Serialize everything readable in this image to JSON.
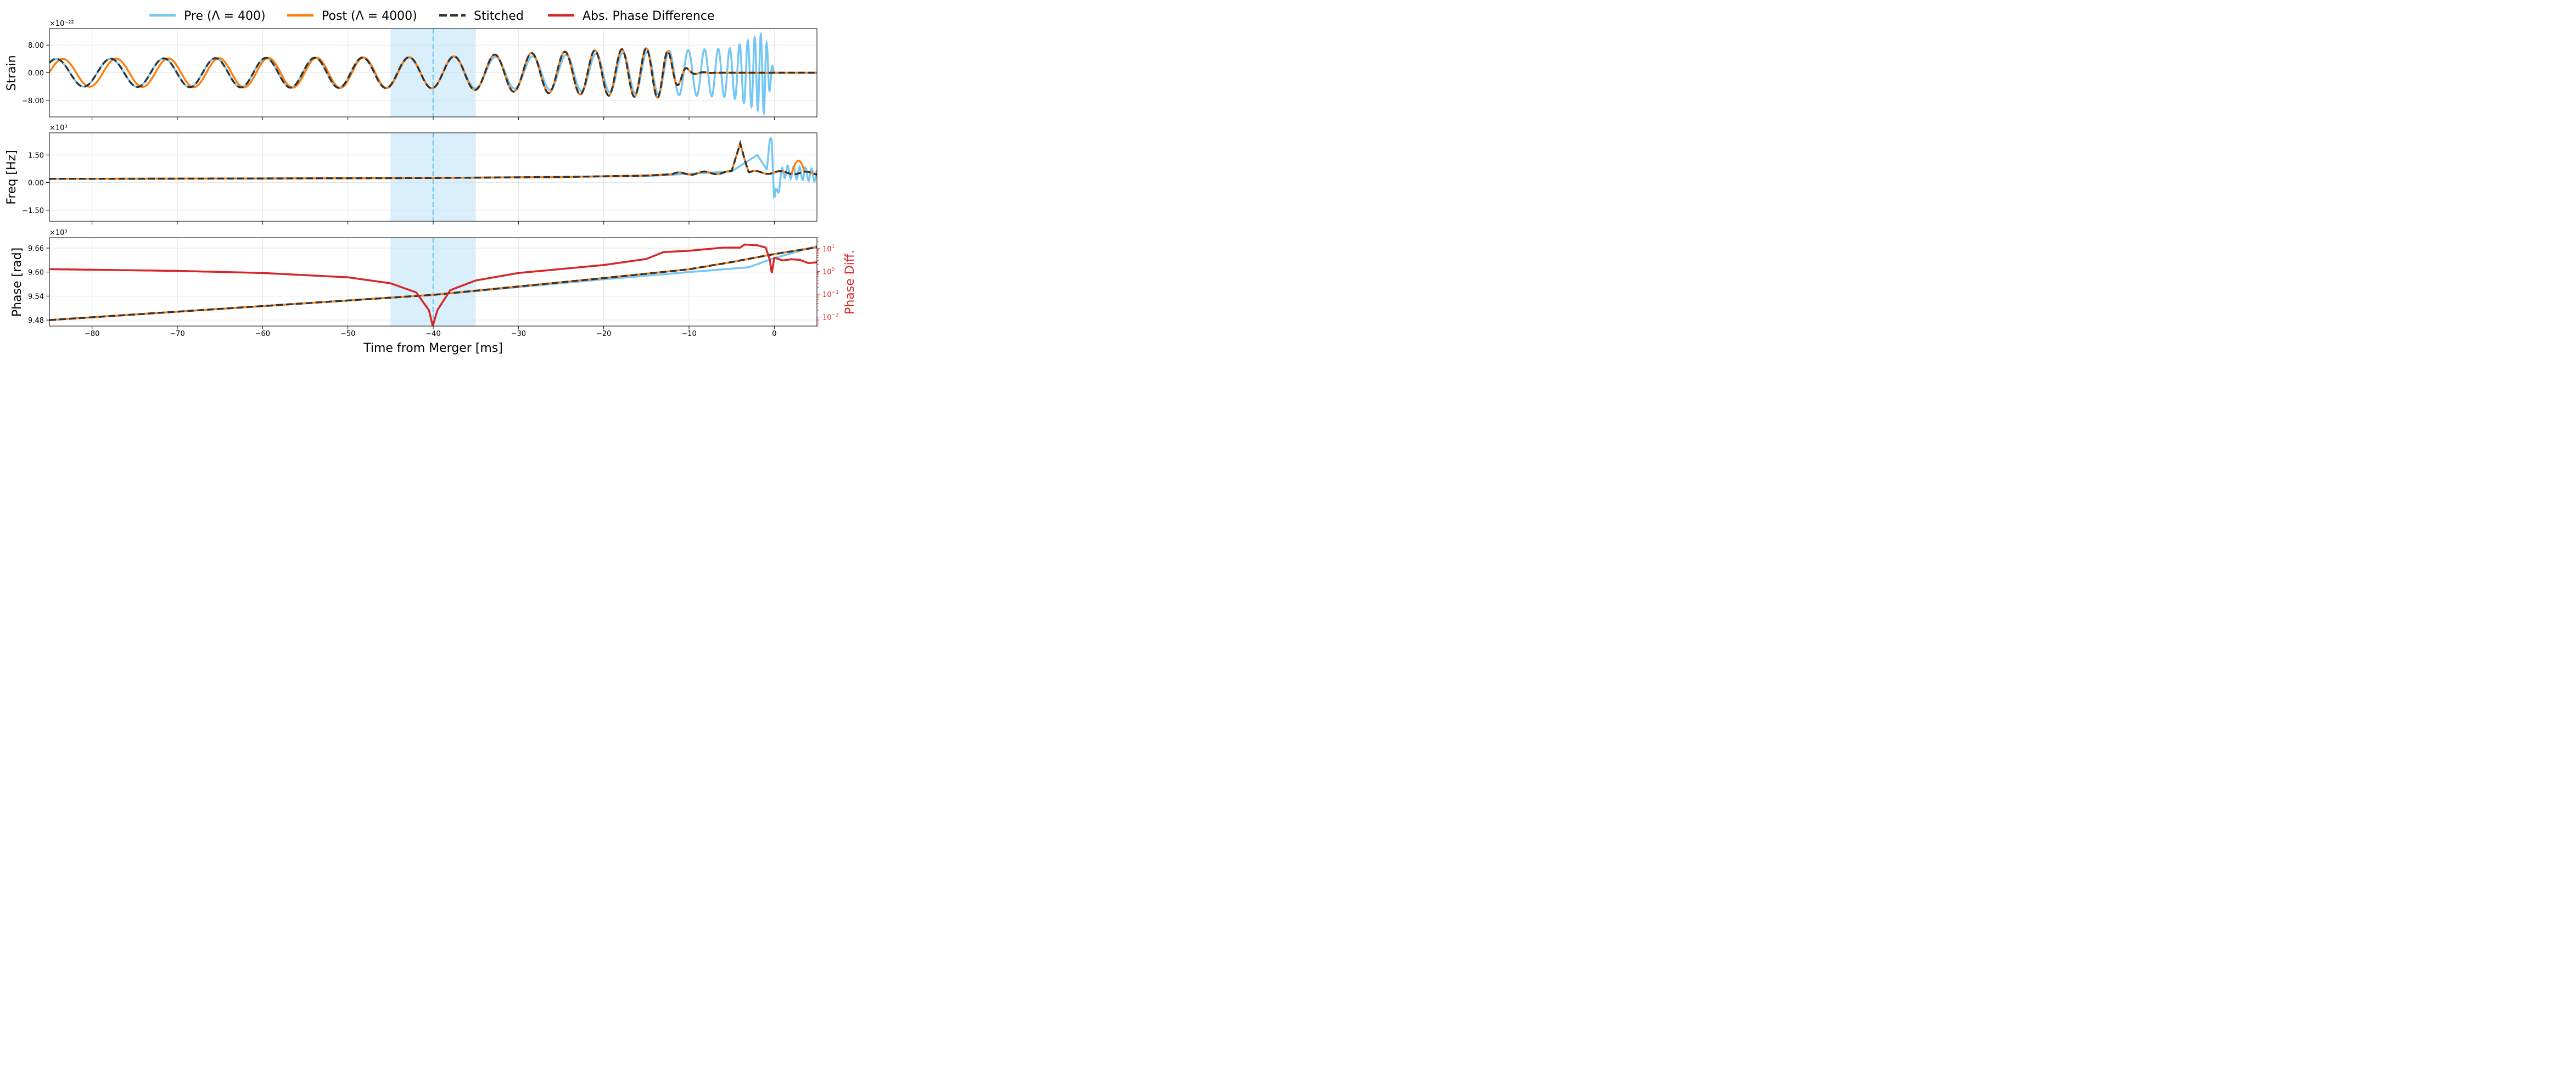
{
  "chart_data": {
    "type": "line",
    "xlabel": "Time from Merger [ms]",
    "xlim": [
      -85,
      5
    ],
    "xticks": [
      -80,
      -70,
      -60,
      -50,
      -40,
      -30,
      -20,
      -10,
      0
    ],
    "xtick_labels": [
      "−80",
      "−70",
      "−60",
      "−50",
      "−40",
      "−30",
      "−20",
      "−10",
      "0"
    ],
    "highlight_window": [
      -45,
      -35
    ],
    "stitch_time": -40,
    "colors": {
      "pre": "#74c7f5",
      "post": "#ff7f0e",
      "stitched": "#333333",
      "phase_diff": "#d62728",
      "window": "#bfe4f8"
    },
    "legend": [
      {
        "key": "pre",
        "label": "Pre (Λ = 400)"
      },
      {
        "key": "post",
        "label": "Post (Λ = 4000)"
      },
      {
        "key": "stitched",
        "label": "Stitched"
      },
      {
        "key": "phase_diff",
        "label": "Abs. Phase Difference"
      }
    ],
    "panels": [
      {
        "key": "strain",
        "ylabel": "Strain",
        "exponent": "×10⁻²²",
        "ylim": [
          -12.8,
          12.8
        ],
        "yticks": [
          8,
          0,
          -8
        ],
        "ytick_labels": [
          "8.00",
          "0.00",
          "−8.00"
        ],
        "series_note": "oscillating waveforms, amplitude ≈ 4 ×10⁻²², chirping towards merger"
      },
      {
        "key": "freq",
        "ylabel": "Freq [Hz]",
        "exponent": "×10³",
        "ylim": [
          -2.1,
          2.7
        ],
        "yticks": [
          1.5,
          0,
          -1.5
        ],
        "ytick_labels": [
          "1.50",
          "0.00",
          "−1.50"
        ],
        "stitched_points": [
          [
            -85,
            0.2
          ],
          [
            -60,
            0.22
          ],
          [
            -40,
            0.25
          ],
          [
            -25,
            0.3
          ],
          [
            -15,
            0.38
          ],
          [
            -10,
            0.5
          ],
          [
            -5,
            0.55
          ],
          [
            -4,
            2.2
          ],
          [
            -3,
            0.55
          ],
          [
            0,
            0.55
          ],
          [
            5,
            0.5
          ]
        ],
        "pre_points": [
          [
            -85,
            0.2
          ],
          [
            -40,
            0.25
          ],
          [
            -15,
            0.35
          ],
          [
            -5,
            0.6
          ],
          [
            -2,
            1.5
          ],
          [
            -1,
            0.8
          ],
          [
            -0.3,
            2.5
          ],
          [
            0,
            -1.0
          ],
          [
            1,
            0.6
          ],
          [
            5,
            0.4
          ]
        ]
      },
      {
        "key": "phase",
        "ylabel": "Phase [rad]",
        "exponent": "×10³",
        "ylim": [
          9.465,
          9.686
        ],
        "yticks": [
          9.66,
          9.6,
          9.54,
          9.48
        ],
        "ytick_labels": [
          "9.66",
          "9.60",
          "9.54",
          "9.48"
        ],
        "right_ylabel": "Phase Diff.",
        "right_yscale": "log",
        "right_ylim": [
          0.004,
          30
        ],
        "right_yticks": [
          {
            "value": 10,
            "base": "10",
            "exp": "1"
          },
          {
            "value": 1,
            "base": "10",
            "exp": "0"
          },
          {
            "value": 0.1,
            "base": "10",
            "exp": "−1"
          },
          {
            "value": 0.01,
            "base": "10",
            "exp": "−2"
          }
        ],
        "stitched_points": [
          [
            -85,
            9.48
          ],
          [
            -40,
            9.543
          ],
          [
            -20,
            9.585
          ],
          [
            -10,
            9.607
          ],
          [
            -5,
            9.625
          ],
          [
            0,
            9.645
          ],
          [
            5,
            9.662
          ]
        ],
        "pre_points": [
          [
            -85,
            9.48
          ],
          [
            -40,
            9.543
          ],
          [
            -20,
            9.582
          ],
          [
            -10,
            9.6
          ],
          [
            -3,
            9.612
          ],
          [
            0,
            9.635
          ],
          [
            5,
            9.665
          ]
        ],
        "phase_diff_points": [
          [
            -85,
            1.25
          ],
          [
            -70,
            1.05
          ],
          [
            -60,
            0.85
          ],
          [
            -50,
            0.55
          ],
          [
            -45,
            0.3
          ],
          [
            -42,
            0.12
          ],
          [
            -40.5,
            0.02
          ],
          [
            -40.05,
            0.004
          ],
          [
            -39.5,
            0.02
          ],
          [
            -38,
            0.15
          ],
          [
            -35,
            0.4
          ],
          [
            -30,
            0.85
          ],
          [
            -20,
            1.9
          ],
          [
            -15,
            3.5
          ],
          [
            -13,
            7
          ],
          [
            -10,
            8
          ],
          [
            -6,
            11
          ],
          [
            -4,
            11
          ],
          [
            -3.5,
            15
          ],
          [
            -2,
            14
          ],
          [
            -1,
            11
          ],
          [
            -0.5,
            3
          ],
          [
            -0.3,
            0.8
          ],
          [
            0,
            4
          ],
          [
            1,
            3
          ],
          [
            2,
            3.4
          ],
          [
            3,
            3.2
          ],
          [
            4,
            2.3
          ],
          [
            5,
            2.5
          ]
        ]
      }
    ]
  }
}
